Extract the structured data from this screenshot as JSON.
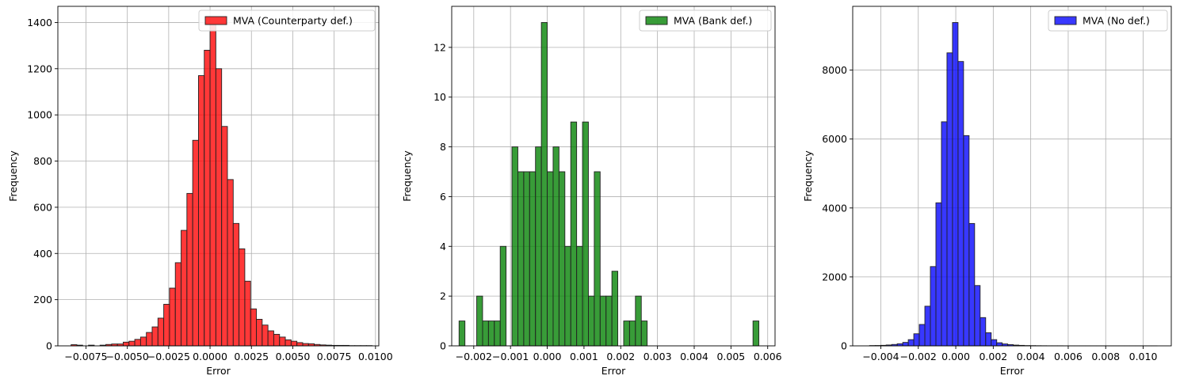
{
  "chart_data": [
    {
      "type": "bar",
      "subtype": "histogram",
      "xlabel": "Error",
      "ylabel": "Frequency",
      "legend": "MVA (Counterparty def.)",
      "legend_position": "top-right",
      "grid": true,
      "color": "#ff0000",
      "bin_start": -0.0084,
      "bin_width": 0.00035,
      "counts": [
        5,
        3,
        0,
        3,
        0,
        3,
        6,
        8,
        8,
        16,
        20,
        28,
        38,
        58,
        82,
        120,
        180,
        250,
        360,
        500,
        660,
        890,
        1170,
        1280,
        1390,
        1200,
        950,
        720,
        530,
        420,
        280,
        160,
        115,
        90,
        65,
        50,
        38,
        26,
        20,
        14,
        10,
        9,
        6,
        4,
        3,
        2,
        2,
        2,
        1,
        1,
        1,
        1
      ],
      "xlim": [
        -0.0092,
        0.0102
      ],
      "ylim": [
        0,
        1470
      ],
      "xticks": [
        -0.0075,
        -0.005,
        -0.0025,
        0.0,
        0.0025,
        0.005,
        0.0075,
        0.01
      ],
      "xtick_labels": [
        "−0.0075",
        "−0.0050",
        "−0.0025",
        "0.0000",
        "0.0025",
        "0.0050",
        "0.0075",
        "0.0100"
      ],
      "yticks": [
        0,
        200,
        400,
        600,
        800,
        1000,
        1200,
        1400
      ],
      "ytick_labels": [
        "0",
        "200",
        "400",
        "600",
        "800",
        "1000",
        "1200",
        "1400"
      ]
    },
    {
      "type": "bar",
      "subtype": "histogram",
      "xlabel": "Error",
      "ylabel": "Frequency",
      "legend": "MVA (Bank def.)",
      "legend_position": "top-right",
      "grid": true,
      "color": "#008000",
      "bin_start": -0.0024,
      "bin_width": 0.00016,
      "counts": [
        1,
        0,
        0,
        2,
        1,
        1,
        1,
        4,
        0,
        8,
        7,
        7,
        7,
        8,
        13,
        7,
        8,
        7,
        4,
        9,
        4,
        9,
        2,
        7,
        2,
        2,
        3,
        0,
        1,
        1,
        2,
        1,
        0,
        0,
        0,
        0,
        0,
        0,
        0,
        0,
        0,
        0,
        0,
        0,
        0,
        0,
        0,
        0,
        0,
        0,
        1
      ],
      "xlim": [
        -0.0026,
        0.0062
      ],
      "ylim": [
        0,
        13.65
      ],
      "xticks": [
        -0.002,
        -0.001,
        0.0,
        0.001,
        0.002,
        0.003,
        0.004,
        0.005,
        0.006
      ],
      "xtick_labels": [
        "−0.002",
        "−0.001",
        "0.000",
        "0.001",
        "0.002",
        "0.003",
        "0.004",
        "0.005",
        "0.006"
      ],
      "yticks": [
        0,
        2,
        4,
        6,
        8,
        10,
        12
      ],
      "ytick_labels": [
        "0",
        "2",
        "4",
        "6",
        "8",
        "10",
        "12"
      ]
    },
    {
      "type": "bar",
      "subtype": "histogram",
      "xlabel": "Error",
      "ylabel": "Frequency",
      "legend": "MVA (No def.)",
      "legend_position": "top-right",
      "grid": true,
      "color": "#0000ff",
      "bin_start": -0.0046,
      "bin_width": 0.000295,
      "counts": [
        8,
        10,
        15,
        25,
        40,
        60,
        100,
        180,
        350,
        620,
        1150,
        2300,
        4150,
        6500,
        8500,
        9380,
        8250,
        6100,
        3550,
        1750,
        820,
        380,
        180,
        90,
        55,
        35,
        22,
        14,
        8,
        6,
        4,
        3,
        2,
        2,
        2,
        1,
        1,
        1,
        1,
        1,
        1,
        1,
        1,
        1,
        1,
        1,
        1,
        1,
        1,
        1,
        1,
        1
      ],
      "xlim": [
        -0.0055,
        0.0115
      ],
      "ylim": [
        0,
        9850
      ],
      "xticks": [
        -0.004,
        -0.002,
        0.0,
        0.002,
        0.004,
        0.006,
        0.008,
        0.01
      ],
      "xtick_labels": [
        "−0.004",
        "−0.002",
        "0.000",
        "0.002",
        "0.004",
        "0.006",
        "0.008",
        "0.010"
      ],
      "yticks": [
        0,
        2000,
        4000,
        6000,
        8000
      ],
      "ytick_labels": [
        "0",
        "2000",
        "4000",
        "6000",
        "8000"
      ]
    }
  ]
}
